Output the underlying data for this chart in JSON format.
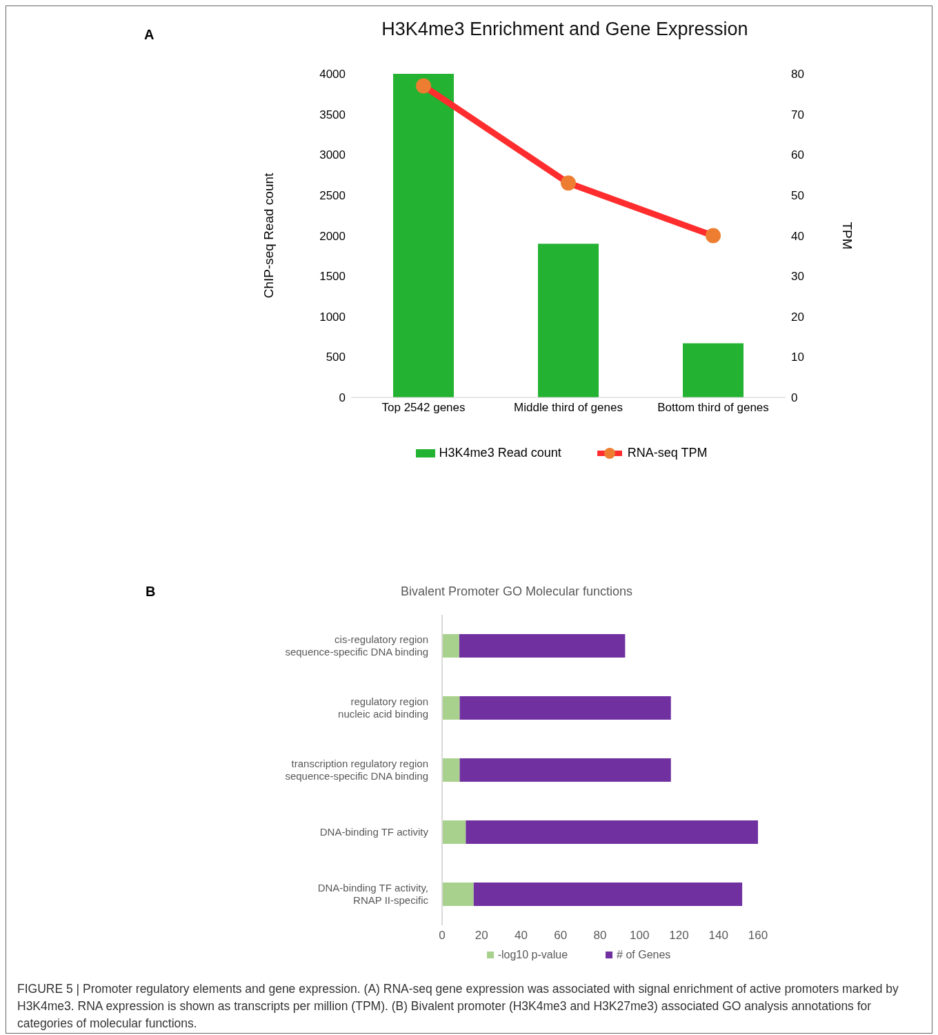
{
  "chart_data": [
    {
      "type": "bar",
      "title": "H3K4me3 Enrichment and Gene Expression",
      "categories": [
        "Top 2542 genes",
        "Middle third of genes",
        "Bottom third of genes"
      ],
      "ylabel": "ChIP-seq Read count",
      "y2label": "TPM",
      "ylim": [
        0,
        4000
      ],
      "yticks": [
        0,
        500,
        1000,
        1500,
        2000,
        2500,
        3000,
        3500,
        4000
      ],
      "y2lim": [
        0,
        80
      ],
      "y2ticks": [
        0,
        10,
        20,
        30,
        40,
        50,
        60,
        70,
        80
      ],
      "legend": "bottom",
      "marker": "circle",
      "annotations": [
        "A"
      ],
      "series": [
        {
          "name": "H3K4me3 Read count",
          "color": "#23b232",
          "values": [
            4000,
            1900,
            670
          ]
        },
        {
          "name": "RNA-seq TPM",
          "type": "line",
          "axis": "y2",
          "color": "#ff2d2d",
          "colors": [
            "#ed7d31",
            "#ed7d31",
            "#ed7d31"
          ],
          "values": [
            77,
            53,
            40
          ]
        }
      ]
    },
    {
      "type": "bar",
      "orientation": "horizontal",
      "stacked": true,
      "title": "Bivalent Promoter GO Molecular functions",
      "categories": [
        "cis-regulatory region\nsequence-specific DNA binding",
        "regulatory region\nnucleic acid binding",
        "transcription regulatory region\nsequence-specific DNA binding",
        "DNA-binding TF activity",
        "DNA-binding TF activity,\nRNAP II-specific"
      ],
      "xlim": [
        0,
        160
      ],
      "xticks": [
        0,
        20,
        40,
        60,
        80,
        100,
        120,
        140,
        160
      ],
      "legend": "bottom",
      "annotations": [
        "B",
        "FIGURE 5 | Promoter regulatory elements and gene expression. (A) RNA-seq gene expression was associated with signal enrichment of active promoters marked by H3K4me3. RNA expression is shown as transcripts per million (TPM). (B) Bivalent promoter (H3K4me3 and H3K27me3) associated GO analysis annotations for categories of molecular functions."
      ],
      "series": [
        {
          "name": "-log10 p-value",
          "color": "#a9d18e",
          "values": [
            8.7,
            8.9,
            8.9,
            12,
            16
          ]
        },
        {
          "name": "# of Genes",
          "color": "#7030a0",
          "values": [
            84,
            107,
            107,
            148,
            136
          ]
        }
      ]
    }
  ]
}
